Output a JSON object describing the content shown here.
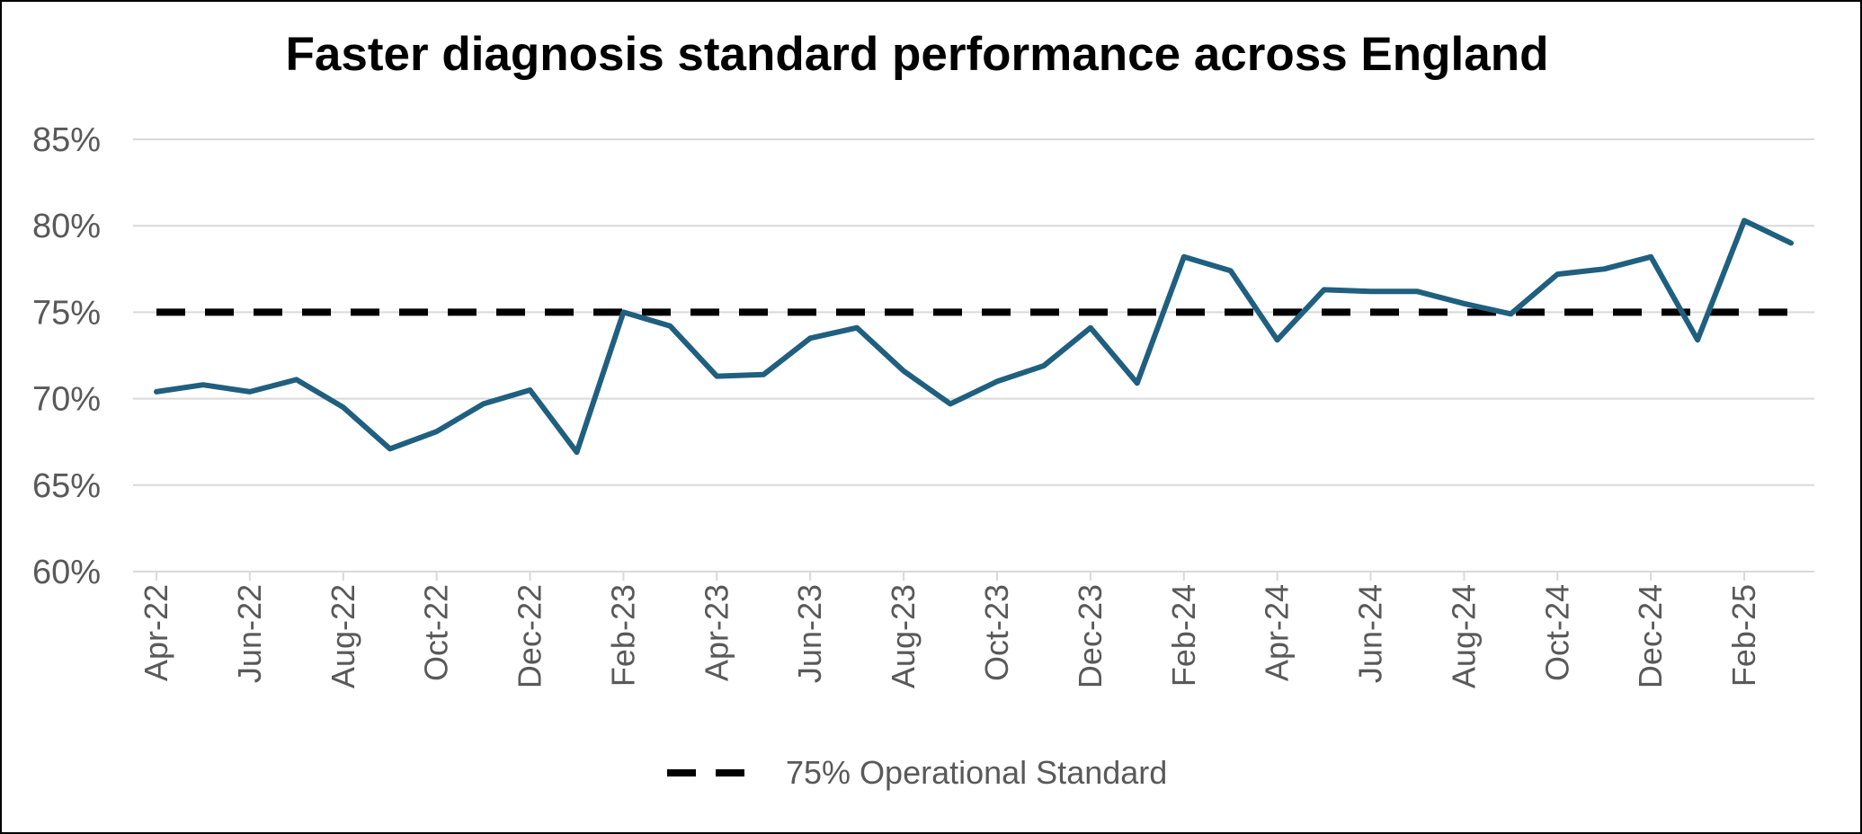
{
  "chart_data": {
    "type": "line",
    "title": "Faster diagnosis standard performance across England",
    "xlabel": "",
    "ylabel": "",
    "ylim": [
      60,
      85
    ],
    "ytick_values": [
      60,
      65,
      70,
      75,
      80,
      85
    ],
    "ytick_labels": [
      "60%",
      "65%",
      "70%",
      "75%",
      "80%",
      "85%"
    ],
    "x": [
      "Apr-22",
      "May-22",
      "Jun-22",
      "Jul-22",
      "Aug-22",
      "Sep-22",
      "Oct-22",
      "Nov-22",
      "Dec-22",
      "Jan-23",
      "Feb-23",
      "Mar-23",
      "Apr-23",
      "May-23",
      "Jun-23",
      "Jul-23",
      "Aug-23",
      "Sep-23",
      "Oct-23",
      "Nov-23",
      "Dec-23",
      "Jan-24",
      "Feb-24",
      "Mar-24",
      "Apr-24",
      "May-24",
      "Jun-24",
      "Jul-24",
      "Aug-24",
      "Sep-24",
      "Oct-24",
      "Nov-24",
      "Dec-24",
      "Jan-25",
      "Feb-25",
      "Mar-25"
    ],
    "xtick_labels": [
      "Apr-22",
      "Jun-22",
      "Aug-22",
      "Oct-22",
      "Dec-22",
      "Feb-23",
      "Apr-23",
      "Jun-23",
      "Aug-23",
      "Oct-23",
      "Dec-23",
      "Feb-24",
      "Apr-24",
      "Jun-24",
      "Aug-24",
      "Oct-24",
      "Dec-24",
      "Feb-25"
    ],
    "series": [
      {
        "name": "",
        "color": "#1f5f7f",
        "style": "solid",
        "values": [
          70.4,
          70.8,
          70.4,
          71.1,
          69.5,
          67.1,
          68.1,
          69.7,
          70.5,
          66.9,
          75.0,
          74.2,
          71.3,
          71.4,
          73.5,
          74.1,
          71.6,
          69.7,
          71.0,
          71.9,
          74.1,
          70.9,
          78.2,
          77.4,
          73.4,
          76.3,
          76.2,
          76.2,
          75.5,
          74.9,
          77.2,
          77.5,
          78.2,
          73.4,
          80.3,
          79.0
        ]
      },
      {
        "name": "75% Operational Standard",
        "color": "#000000",
        "style": "dashed",
        "values": [
          75,
          75,
          75,
          75,
          75,
          75,
          75,
          75,
          75,
          75,
          75,
          75,
          75,
          75,
          75,
          75,
          75,
          75,
          75,
          75,
          75,
          75,
          75,
          75,
          75,
          75,
          75,
          75,
          75,
          75,
          75,
          75,
          75,
          75,
          75,
          75
        ]
      }
    ],
    "legend": {
      "position": "bottom"
    },
    "grid": true,
    "gridline_color": "#d9d9d9"
  }
}
